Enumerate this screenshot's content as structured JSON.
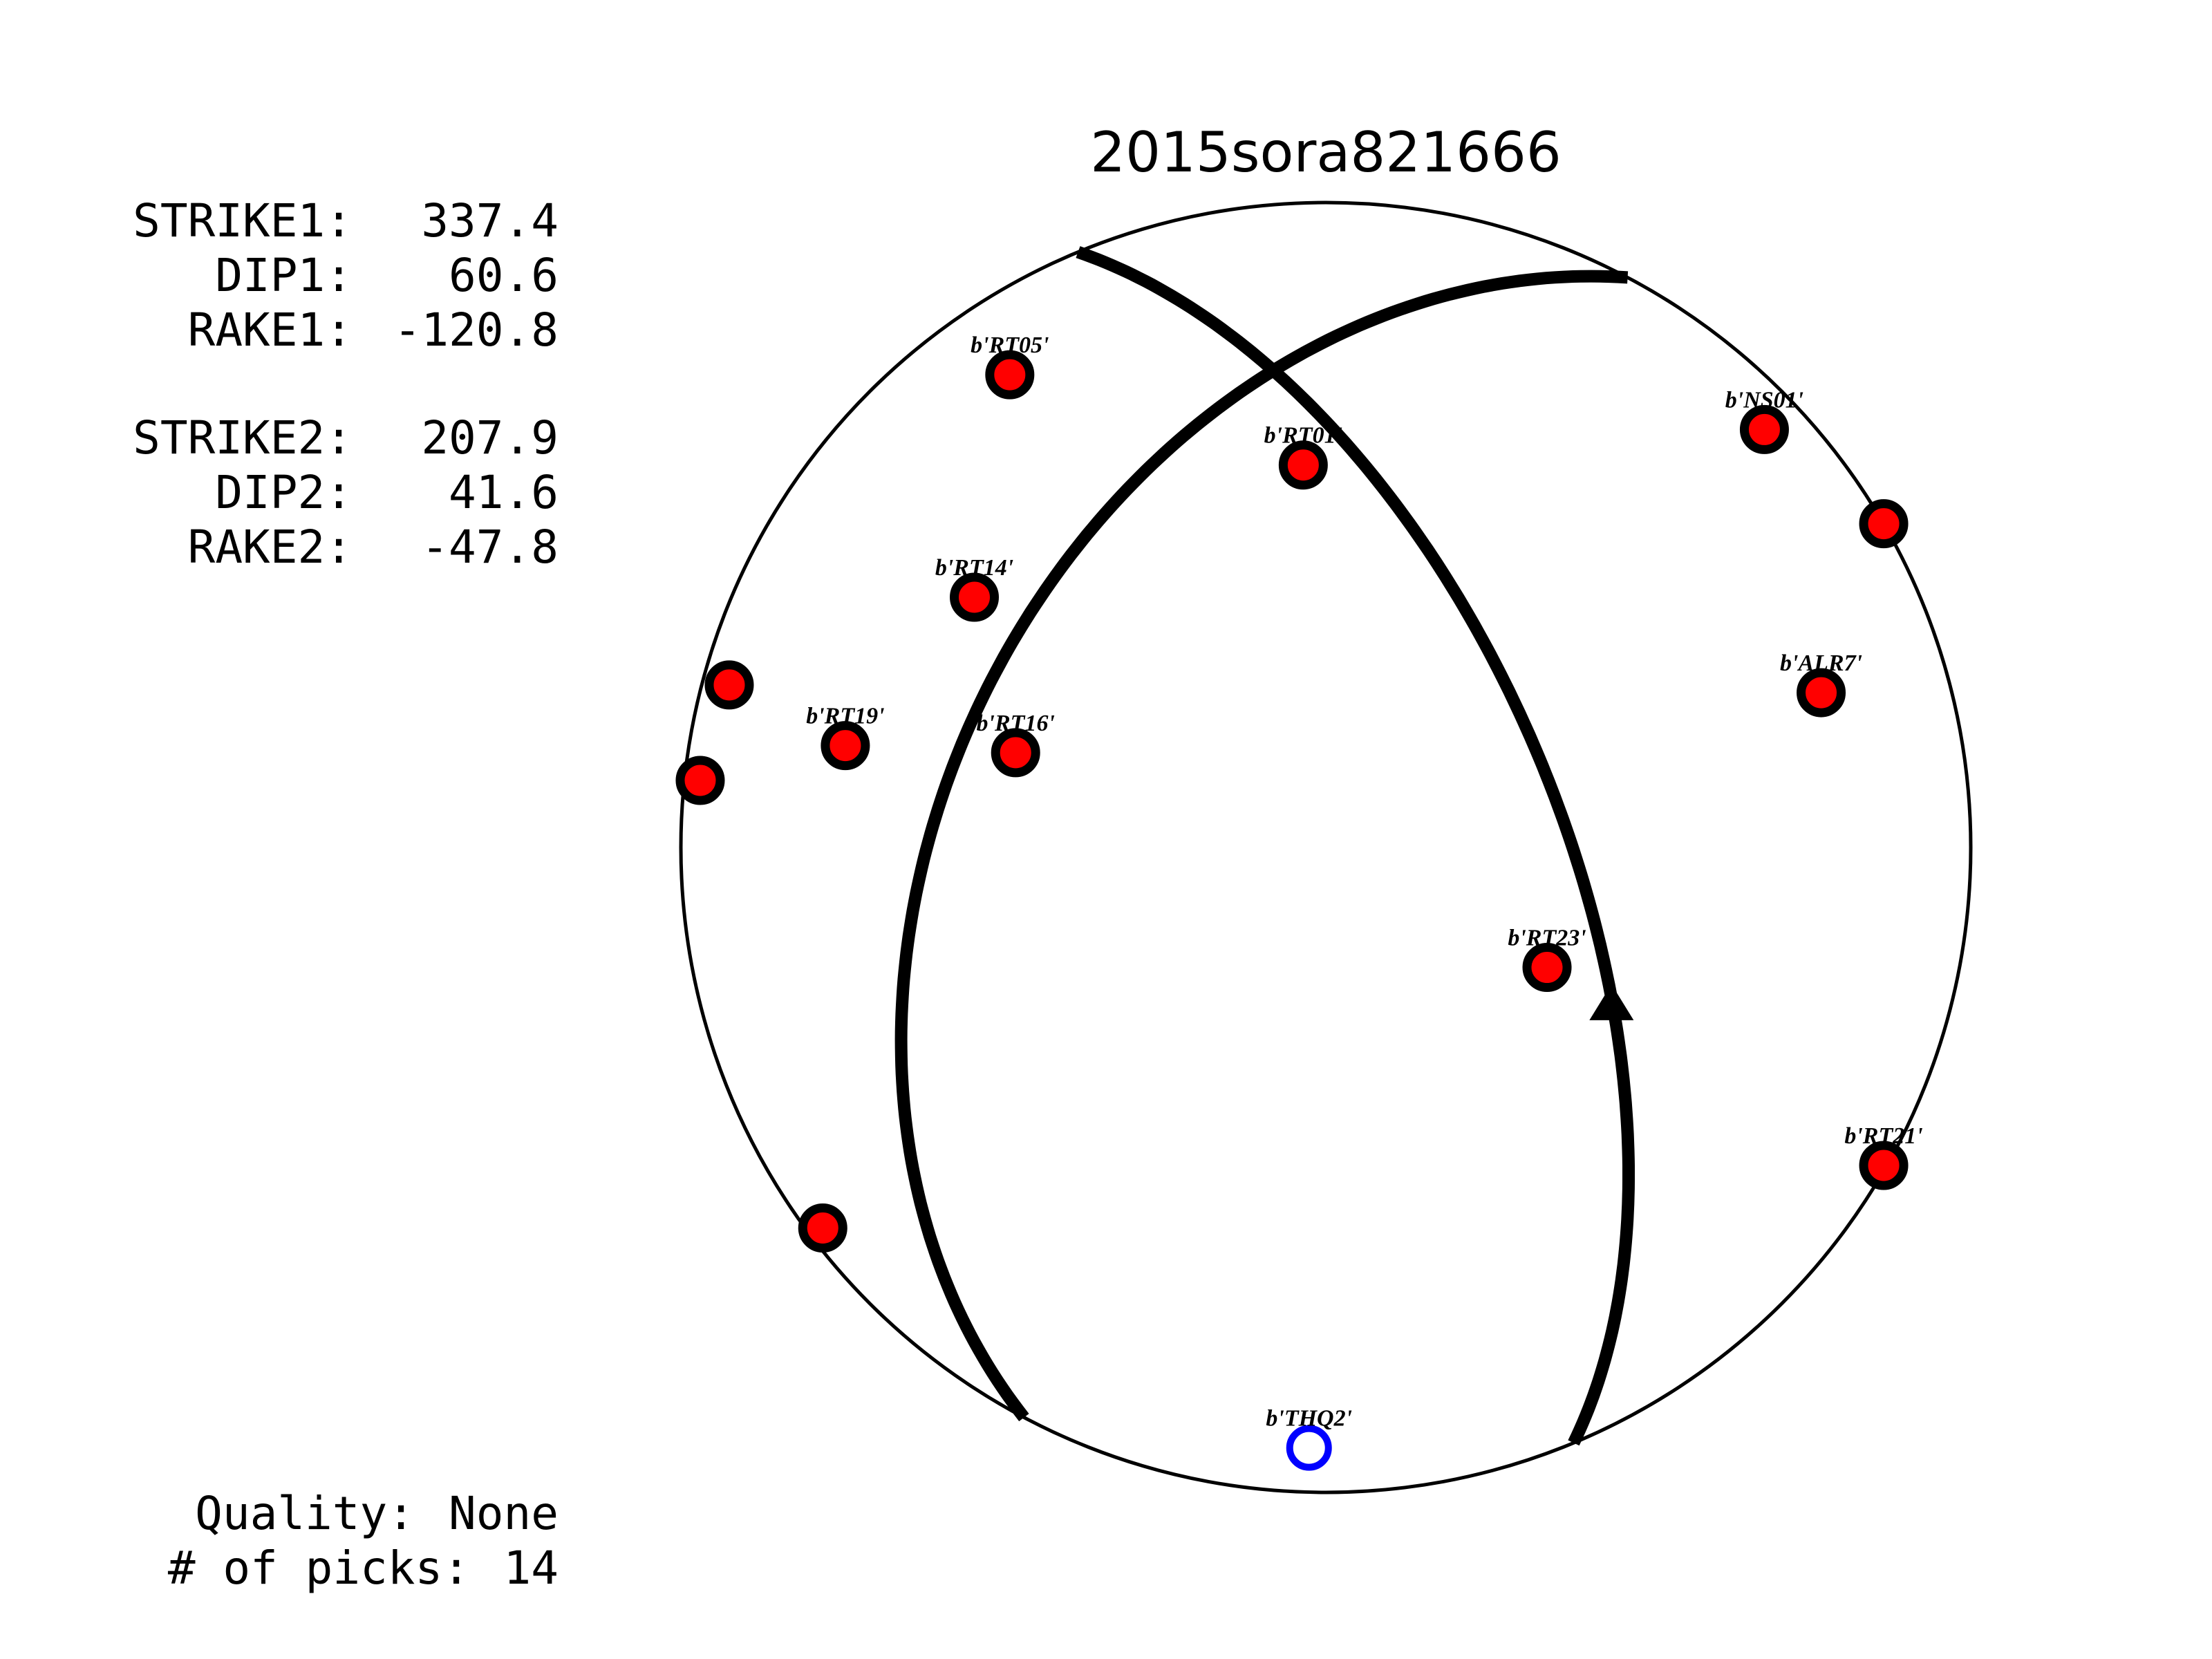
{
  "title": "2015sora821666",
  "params": {
    "strike1_label": "STRIKE1:",
    "strike1": "337.4",
    "dip1_label": "DIP1:",
    "dip1": "60.6",
    "rake1_label": "RAKE1:",
    "rake1": "-120.8",
    "strike2_label": "STRIKE2:",
    "strike2": "207.9",
    "dip2_label": "DIP2:",
    "dip2": "41.6",
    "rake2_label": "RAKE2:",
    "rake2": "-47.8"
  },
  "quality_label": "Quality:",
  "quality": "None",
  "picks_label": "# of picks:",
  "picks": "14",
  "colors": {
    "up_fill": "#ff0000",
    "down_ring": "#0000ff",
    "outline": "#000000",
    "plane": "#000000"
  },
  "chart_data": {
    "type": "scatter",
    "projection": "equal-area lower hemisphere (beachball)",
    "title": "2015sora821666",
    "planes": [
      {
        "strike": 337.4,
        "dip": 60.6,
        "rake": -120.8
      },
      {
        "strike": 207.9,
        "dip": 41.6,
        "rake": -47.8
      }
    ],
    "stations": [
      {
        "label": "b'RT05'",
        "x": -0.49,
        "y": 0.733,
        "polarity": "up"
      },
      {
        "label": "b'RT01'",
        "x": -0.035,
        "y": 0.593,
        "polarity": "up"
      },
      {
        "label": "b'NS01'",
        "x": 0.68,
        "y": 0.648,
        "polarity": "up"
      },
      {
        "label": "",
        "x": 0.865,
        "y": 0.502,
        "polarity": "up"
      },
      {
        "label": "b'RT14'",
        "x": -0.545,
        "y": 0.388,
        "polarity": "up"
      },
      {
        "label": "",
        "x": -0.925,
        "y": 0.252,
        "polarity": "up"
      },
      {
        "label": "b'ALR7'",
        "x": 0.768,
        "y": 0.24,
        "polarity": "up"
      },
      {
        "label": "b'RT19'",
        "x": -0.745,
        "y": 0.158,
        "polarity": "up"
      },
      {
        "label": "b'RT16'",
        "x": -0.481,
        "y": 0.147,
        "polarity": "up"
      },
      {
        "label": "",
        "x": -0.97,
        "y": 0.104,
        "polarity": "up"
      },
      {
        "label": "b'RT23'",
        "x": 0.343,
        "y": -0.186,
        "polarity": "up"
      },
      {
        "label": "b'RT21'",
        "x": 0.865,
        "y": -0.493,
        "polarity": "up"
      },
      {
        "label": "",
        "x": -0.78,
        "y": -0.59,
        "polarity": "up"
      },
      {
        "label": "b'THQ2'",
        "x": -0.026,
        "y": -0.931,
        "polarity": "down"
      }
    ],
    "markers": [
      {
        "type": "triangle",
        "x": 0.443,
        "y": -0.24
      }
    ]
  }
}
